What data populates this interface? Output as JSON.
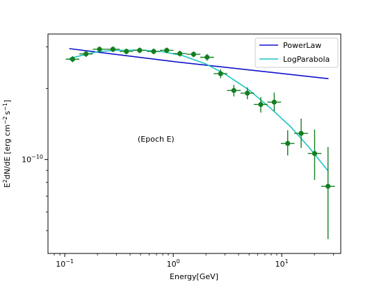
{
  "chart_data": {
    "type": "scatter",
    "xlabel": "Energy[GeV]",
    "ylabel_parts": [
      "E",
      "2",
      "dN/dE [erg cm",
      "−2",
      "s",
      "−1",
      "]"
    ],
    "x_scale": "log",
    "y_scale": "log",
    "xlim": [
      0.07,
      35
    ],
    "ylim": [
      4e-11,
      3.4e-10
    ],
    "x_ticks": [
      {
        "value": 0.1,
        "base": "10",
        "exp": "−1"
      },
      {
        "value": 1,
        "base": "10",
        "exp": "0"
      },
      {
        "value": 10,
        "base": "10",
        "exp": "1"
      }
    ],
    "y_ticks": [
      {
        "value": 1e-10,
        "base": "10",
        "exp": "−10"
      }
    ],
    "annotation": "(Epoch E)",
    "legend_position": "top-right",
    "colors": {
      "powerlaw": "#1010cc",
      "logparabola": "#19c4c4",
      "points": "#137f20"
    },
    "series": [
      {
        "name": "PowerLaw",
        "kind": "line",
        "x": [
          0.11,
          1.0,
          27.0
        ],
        "y": [
          2.95e-10,
          2.6e-10,
          2.2e-10
        ]
      },
      {
        "name": "LogParabola",
        "kind": "line",
        "x": [
          0.11,
          0.2,
          0.3,
          0.5,
          0.8,
          1.2,
          2.0,
          3.0,
          5.0,
          8.0,
          12.0,
          18.0,
          27.0
        ],
        "y": [
          2.68e-10,
          2.86e-10,
          2.9e-10,
          2.91e-10,
          2.86e-10,
          2.76e-10,
          2.54e-10,
          2.3e-10,
          1.97e-10,
          1.64e-10,
          1.38e-10,
          1.12e-10,
          8.9e-11
        ]
      },
      {
        "kind": "points",
        "x": [
          0.118,
          0.157,
          0.209,
          0.278,
          0.37,
          0.49,
          0.66,
          0.87,
          1.15,
          1.54,
          2.05,
          2.73,
          3.62,
          4.82,
          6.41,
          8.53,
          11.35,
          15.1,
          20.1,
          26.7
        ],
        "y": [
          2.66e-10,
          2.8e-10,
          2.93e-10,
          2.93e-10,
          2.87e-10,
          2.9e-10,
          2.87e-10,
          2.9e-10,
          2.81e-10,
          2.79e-10,
          2.71e-10,
          2.31e-10,
          1.96e-10,
          1.91e-10,
          1.71e-10,
          1.75e-10,
          1.17e-10,
          1.29e-10,
          1.06e-10,
          7.7e-11
        ],
        "y_err_low": [
          8e-12,
          8e-12,
          8e-12,
          8e-12,
          8e-12,
          8e-12,
          8e-12,
          8e-12,
          8e-12,
          8e-12,
          9e-12,
          1e-11,
          1.1e-11,
          1.1e-11,
          1.3e-11,
          1.5e-11,
          1.3e-11,
          1.7e-11,
          2.4e-11,
          3.1e-11
        ],
        "y_err_high": [
          8e-12,
          8e-12,
          8e-12,
          8e-12,
          8e-12,
          8e-12,
          8e-12,
          8e-12,
          8e-12,
          8e-12,
          9e-12,
          1e-11,
          1.1e-11,
          1.1e-11,
          1.3e-11,
          1.7e-11,
          1.6e-11,
          2e-11,
          2.8e-11,
          3.6e-11
        ],
        "x_err_low": [
          0.016,
          0.021,
          0.028,
          0.037,
          0.05,
          0.066,
          0.088,
          0.117,
          0.155,
          0.207,
          0.276,
          0.37,
          0.49,
          0.65,
          0.87,
          1.15,
          1.54,
          2.05,
          2.72,
          3.6
        ],
        "x_err_high": [
          0.018,
          0.024,
          0.032,
          0.043,
          0.057,
          0.076,
          0.1,
          0.134,
          0.178,
          0.238,
          0.318,
          0.42,
          0.56,
          0.75,
          1.0,
          1.33,
          1.77,
          2.36,
          3.13,
          4.2
        ]
      }
    ]
  }
}
